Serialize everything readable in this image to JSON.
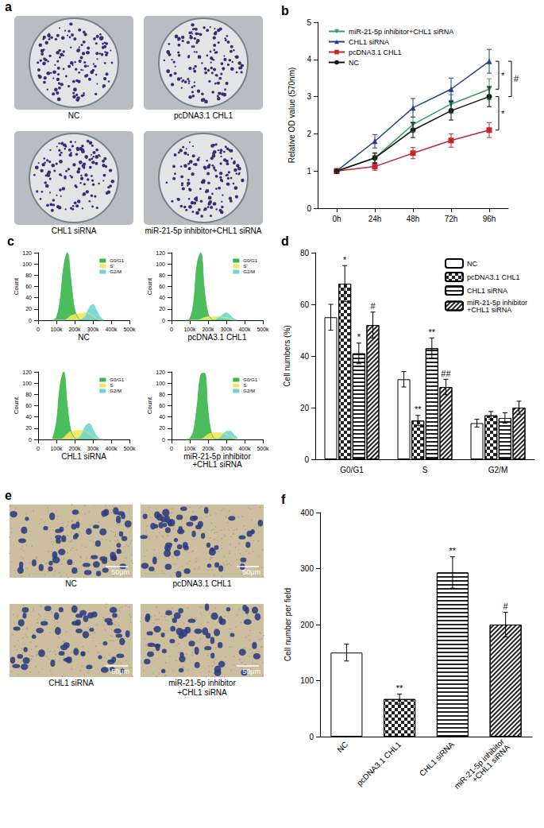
{
  "images": [
    {
      "title": "a",
      "captions": [
        "NC",
        "pcDNA3.1 CHL1",
        "CHL1 siRNA",
        "miR-21-5p inhibitor+CHL1 siRNA"
      ]
    },
    {
      "title": "e",
      "captions": [
        "NC",
        "pcDNA3.1 CHL1",
        "CHL1 siRNA",
        "miR-21-5p inhibitor\n+CHL1 siRNA"
      ],
      "scale_bar": "50μm"
    }
  ],
  "chart_data": [
    {
      "title": "b",
      "type": "line",
      "categories": [
        "0h",
        "24h",
        "48h",
        "72h",
        "96h"
      ],
      "y_label": "Relative OD value (570nm)",
      "ylim": [
        0,
        5
      ],
      "yticks": [
        0,
        1,
        2,
        3,
        4,
        5
      ],
      "grid": false,
      "legend": "upper left",
      "series": [
        {
          "name": "miR-21-5p inhibitor+CHL1 siRNA",
          "color": "#3a9a6a",
          "marker": "triangle-down",
          "values": [
            1,
            1.35,
            2.25,
            2.8,
            3.2
          ],
          "errors": [
            0.04,
            0.12,
            0.2,
            0.25,
            0.28
          ]
        },
        {
          "name": "CHL1 siRNA",
          "color": "#233f8c",
          "marker": "triangle",
          "values": [
            1,
            1.8,
            2.7,
            3.2,
            3.95
          ],
          "errors": [
            0.04,
            0.18,
            0.25,
            0.3,
            0.32
          ]
        },
        {
          "name": "pcDNA3.1 CHL1",
          "color": "#c1272d",
          "marker": "square",
          "values": [
            1,
            1.12,
            1.48,
            1.82,
            2.1
          ],
          "errors": [
            0.04,
            0.1,
            0.15,
            0.18,
            0.2
          ]
        },
        {
          "name": "NC",
          "color": "#111111",
          "marker": "circle",
          "values": [
            1,
            1.35,
            2.1,
            2.62,
            3.0
          ],
          "errors": [
            0.04,
            0.14,
            0.2,
            0.25,
            0.27
          ]
        }
      ],
      "annotations": [
        {
          "text": "*",
          "x": "96h",
          "y_range": [
            3.2,
            3.95
          ]
        },
        {
          "text": "#",
          "x": "96h",
          "y_range": [
            3.0,
            3.95
          ]
        },
        {
          "text": "*",
          "x": "96h",
          "y_range": [
            2.1,
            3.0
          ]
        }
      ]
    },
    {
      "title": "c",
      "type": "area",
      "y_label": "Count",
      "grid": false,
      "legend": "upper right",
      "x": [
        80000,
        100000,
        120000,
        140000,
        160000,
        180000,
        200000,
        220000,
        240000,
        260000,
        280000,
        300000,
        320000,
        340000,
        360000
      ],
      "xlim": [
        0,
        500000
      ],
      "xticks": [
        0,
        {
          "value": 100000,
          "label": "100k"
        },
        {
          "value": 200000,
          "label": "200k"
        },
        {
          "value": 300000,
          "label": "300k"
        },
        {
          "value": 400000,
          "label": "400k"
        },
        {
          "value": 500000,
          "label": "500k"
        }
      ],
      "ylim": [
        0,
        120
      ],
      "yticks": [
        0,
        20,
        40,
        60,
        80,
        100,
        120
      ],
      "subplots": [
        {
          "caption": "NC",
          "series": [
            {
              "name": "G0/G1",
              "color": "#39b54a",
              "values": [
                0,
                5,
                35,
                95,
                120,
                70,
                20,
                4,
                0,
                0,
                0,
                0,
                0,
                0,
                0
              ]
            },
            {
              "name": "S",
              "color": "#f2e85c",
              "values": [
                0,
                0,
                0,
                0,
                3,
                8,
                10,
                11,
                12,
                13,
                12,
                8,
                3,
                0,
                0
              ]
            },
            {
              "name": "G2/M",
              "color": "#6fd6cf",
              "values": [
                0,
                0,
                0,
                0,
                0,
                0,
                0,
                0,
                2,
                8,
                22,
                28,
                18,
                6,
                0
              ]
            }
          ]
        },
        {
          "caption": "pcDNA3.1 CHL1",
          "series": [
            {
              "name": "G0/G1",
              "color": "#39b54a",
              "values": [
                0,
                3,
                30,
                100,
                120,
                55,
                12,
                2,
                0,
                0,
                0,
                0,
                0,
                0,
                0
              ]
            },
            {
              "name": "S",
              "color": "#f2e85c",
              "values": [
                0,
                0,
                0,
                0,
                2,
                5,
                6,
                6,
                6,
                6,
                5,
                4,
                2,
                0,
                0
              ]
            },
            {
              "name": "G2/M",
              "color": "#6fd6cf",
              "values": [
                0,
                0,
                0,
                0,
                0,
                0,
                0,
                0,
                1,
                5,
                10,
                13,
                9,
                3,
                0
              ]
            }
          ]
        },
        {
          "caption": "CHL1 siRNA",
          "series": [
            {
              "name": "G0/G1",
              "color": "#39b54a",
              "values": [
                2,
                30,
                95,
                120,
                60,
                15,
                3,
                0,
                0,
                0,
                0,
                0,
                0,
                0,
                0
              ]
            },
            {
              "name": "S",
              "color": "#f2e85c",
              "values": [
                0,
                0,
                0,
                3,
                10,
                14,
                15,
                16,
                16,
                14,
                10,
                5,
                1,
                0,
                0
              ]
            },
            {
              "name": "G2/M",
              "color": "#6fd6cf",
              "values": [
                0,
                0,
                0,
                0,
                0,
                0,
                0,
                2,
                10,
                24,
                28,
                18,
                6,
                1,
                0
              ]
            }
          ]
        },
        {
          "caption": "miR-21-5p inhibitor\n+CHL1 siRNA",
          "series": [
            {
              "name": "G0/G1",
              "color": "#39b54a",
              "values": [
                0,
                2,
                15,
                60,
                115,
                118,
                50,
                10,
                1,
                0,
                0,
                0,
                0,
                0,
                0
              ]
            },
            {
              "name": "S",
              "color": "#f2e85c",
              "values": [
                0,
                0,
                0,
                0,
                0,
                4,
                9,
                11,
                12,
                12,
                11,
                9,
                6,
                2,
                0
              ]
            },
            {
              "name": "G2/M",
              "color": "#6fd6cf",
              "values": [
                0,
                0,
                0,
                0,
                0,
                0,
                0,
                0,
                0,
                2,
                8,
                14,
                15,
                9,
                3
              ]
            }
          ]
        }
      ]
    },
    {
      "title": "d",
      "type": "bar",
      "categories": [
        "G0/G1",
        "S",
        "G2/M"
      ],
      "y_label": "Cell numbers (%)",
      "ylim": [
        0,
        80
      ],
      "yticks": [
        0,
        20,
        40,
        60,
        80
      ],
      "grid": false,
      "legend": "upper right",
      "series": [
        {
          "name": "NC",
          "color": "#ffffff",
          "values": [
            55,
            31,
            14
          ],
          "errors": [
            5,
            3,
            1.5
          ],
          "significance": [
            null,
            null,
            null
          ]
        },
        {
          "name": "pcDNA3.1 CHL1",
          "color": "#ffffff",
          "values": [
            68,
            15,
            17
          ],
          "errors": [
            7,
            2,
            1.5
          ],
          "significance": [
            "*",
            "**",
            null
          ]
        },
        {
          "name": "CHL1 siRNA",
          "color": "#ffffff",
          "values": [
            41,
            43,
            16
          ],
          "errors": [
            4,
            4,
            2
          ],
          "significance": [
            "*",
            "**",
            null
          ]
        },
        {
          "name": "miR-21-5p inhibitor\n+CHL1 siRNA",
          "color": "#ffffff",
          "values": [
            52,
            28,
            20
          ],
          "errors": [
            5,
            3,
            2.5
          ],
          "significance": [
            "#",
            "##",
            null
          ]
        }
      ]
    },
    {
      "title": "f",
      "type": "bar",
      "categories": [
        "NC",
        "pcDNA3.1 CHL1",
        "CHL1 siRNA",
        "miR-21-5p inhibitor\n+CHL1 siRNA"
      ],
      "y_label": "Cell number per field",
      "ylim": [
        0,
        400
      ],
      "yticks": [
        0,
        100,
        200,
        300,
        400
      ],
      "grid": false,
      "values": [
        150,
        67,
        293,
        200
      ],
      "errors": [
        15,
        9,
        28,
        22
      ],
      "significance": [
        null,
        "**",
        "**",
        "#"
      ],
      "colors": [
        "#ffffff",
        "#ffffff",
        "#ffffff",
        "#ffffff"
      ]
    }
  ]
}
